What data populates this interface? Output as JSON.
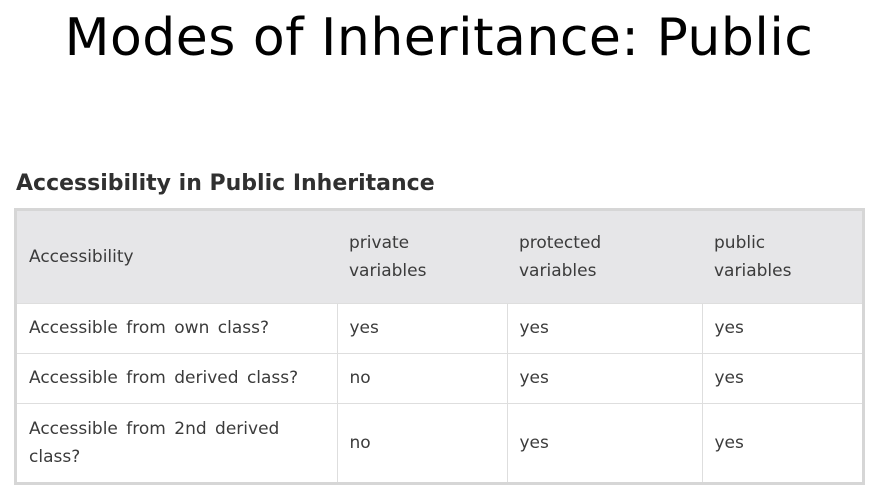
{
  "slide": {
    "title": "Modes of Inheritance: Public"
  },
  "section": {
    "heading": "Accessibility in Public Inheritance"
  },
  "table": {
    "headers": {
      "col1": "Accessibility",
      "col2_line1": "private",
      "col2_line2": "variables",
      "col3_line1": "protected",
      "col3_line2": "variables",
      "col4_line1": "public",
      "col4_line2": "variables"
    },
    "rows": [
      {
        "label": "Accessible from own class?",
        "private": "yes",
        "protected": "yes",
        "public": "yes"
      },
      {
        "label": "Accessible from derived class?",
        "private": "no",
        "protected": "yes",
        "public": "yes"
      },
      {
        "label_line1": "Accessible from 2nd derived",
        "label_line2": "class?",
        "private": "no",
        "protected": "yes",
        "public": "yes"
      }
    ]
  }
}
